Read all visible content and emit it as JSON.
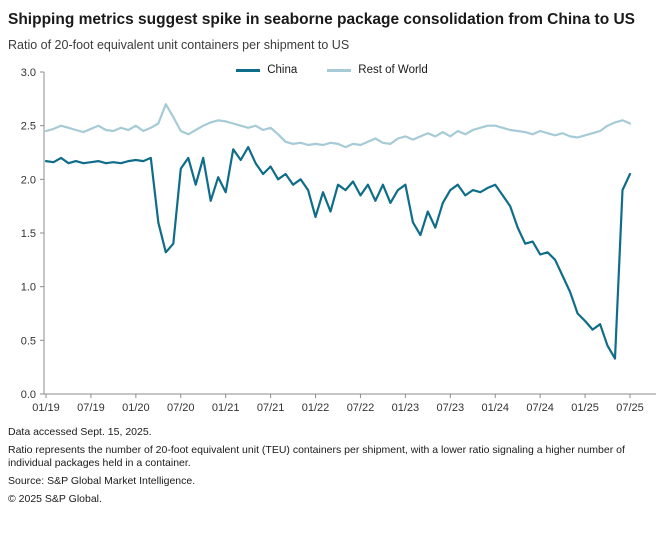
{
  "page": {
    "title": "Shipping metrics suggest spike in seaborne package consolidation from China to US",
    "subtitle": "Ratio of 20-foot equivalent unit containers per shipment to US",
    "footnotes": [
      "Data accessed Sept. 15, 2025.",
      "Ratio represents the number of 20-foot equivalent unit (TEU) containers per shipment, with a lower ratio signaling a higher number of individual packages held in a container.",
      "Source: S&P Global Market Intelligence.",
      "© 2025 S&P Global."
    ]
  },
  "chart_data": {
    "type": "line",
    "title": "Shipping metrics suggest spike in seaborne package consolidation from China to US",
    "subtitle": "Ratio of 20-foot equivalent unit containers per shipment to US",
    "x_frequency": "monthly",
    "x_start": "01/19",
    "x_end": "07/25",
    "xtick_labels": [
      "01/19",
      "07/19",
      "01/20",
      "07/20",
      "01/21",
      "07/21",
      "01/22",
      "07/22",
      "01/23",
      "07/23",
      "01/24",
      "07/24",
      "01/25",
      "07/25"
    ],
    "ylim": [
      0,
      3
    ],
    "yticks": [
      3.0,
      2.5,
      2.0,
      1.5,
      1.0,
      0.5,
      0.0
    ],
    "ytick_labels": [
      "3.0",
      "2.5",
      "2.0",
      "1.5",
      "1.0",
      "0.5",
      "0.0"
    ],
    "grid": false,
    "legend_position": "top-center",
    "axis_color": "#8c8c8c",
    "tick_text_color": "#333333",
    "series": [
      {
        "name": "China",
        "color": "#0f6d8a",
        "values": [
          2.17,
          2.16,
          2.2,
          2.15,
          2.17,
          2.15,
          2.16,
          2.17,
          2.15,
          2.16,
          2.15,
          2.17,
          2.18,
          2.17,
          2.2,
          1.6,
          1.32,
          1.4,
          2.1,
          2.2,
          1.95,
          2.2,
          1.8,
          2.02,
          1.88,
          2.28,
          2.18,
          2.3,
          2.15,
          2.05,
          2.12,
          2.0,
          2.05,
          1.95,
          2.0,
          1.9,
          1.65,
          1.88,
          1.7,
          1.95,
          1.9,
          1.98,
          1.85,
          1.95,
          1.8,
          1.95,
          1.78,
          1.9,
          1.95,
          1.6,
          1.48,
          1.7,
          1.55,
          1.78,
          1.9,
          1.95,
          1.85,
          1.9,
          1.88,
          1.92,
          1.95,
          1.85,
          1.75,
          1.55,
          1.4,
          1.42,
          1.3,
          1.32,
          1.25,
          1.1,
          0.95,
          0.75,
          0.68,
          0.6,
          0.65,
          0.45,
          0.33,
          1.9,
          2.05
        ]
      },
      {
        "name": "Rest of World",
        "color": "#a6cbd6",
        "values": [
          2.45,
          2.47,
          2.5,
          2.48,
          2.46,
          2.44,
          2.47,
          2.5,
          2.46,
          2.45,
          2.48,
          2.46,
          2.5,
          2.45,
          2.48,
          2.52,
          2.7,
          2.58,
          2.45,
          2.42,
          2.46,
          2.5,
          2.53,
          2.55,
          2.54,
          2.52,
          2.5,
          2.48,
          2.5,
          2.46,
          2.48,
          2.42,
          2.35,
          2.33,
          2.34,
          2.32,
          2.33,
          2.32,
          2.34,
          2.33,
          2.3,
          2.33,
          2.32,
          2.35,
          2.38,
          2.34,
          2.33,
          2.38,
          2.4,
          2.37,
          2.4,
          2.43,
          2.4,
          2.44,
          2.4,
          2.45,
          2.42,
          2.46,
          2.48,
          2.5,
          2.5,
          2.48,
          2.46,
          2.45,
          2.44,
          2.42,
          2.45,
          2.43,
          2.41,
          2.43,
          2.4,
          2.39,
          2.41,
          2.43,
          2.45,
          2.5,
          2.53,
          2.55,
          2.52
        ]
      }
    ]
  }
}
